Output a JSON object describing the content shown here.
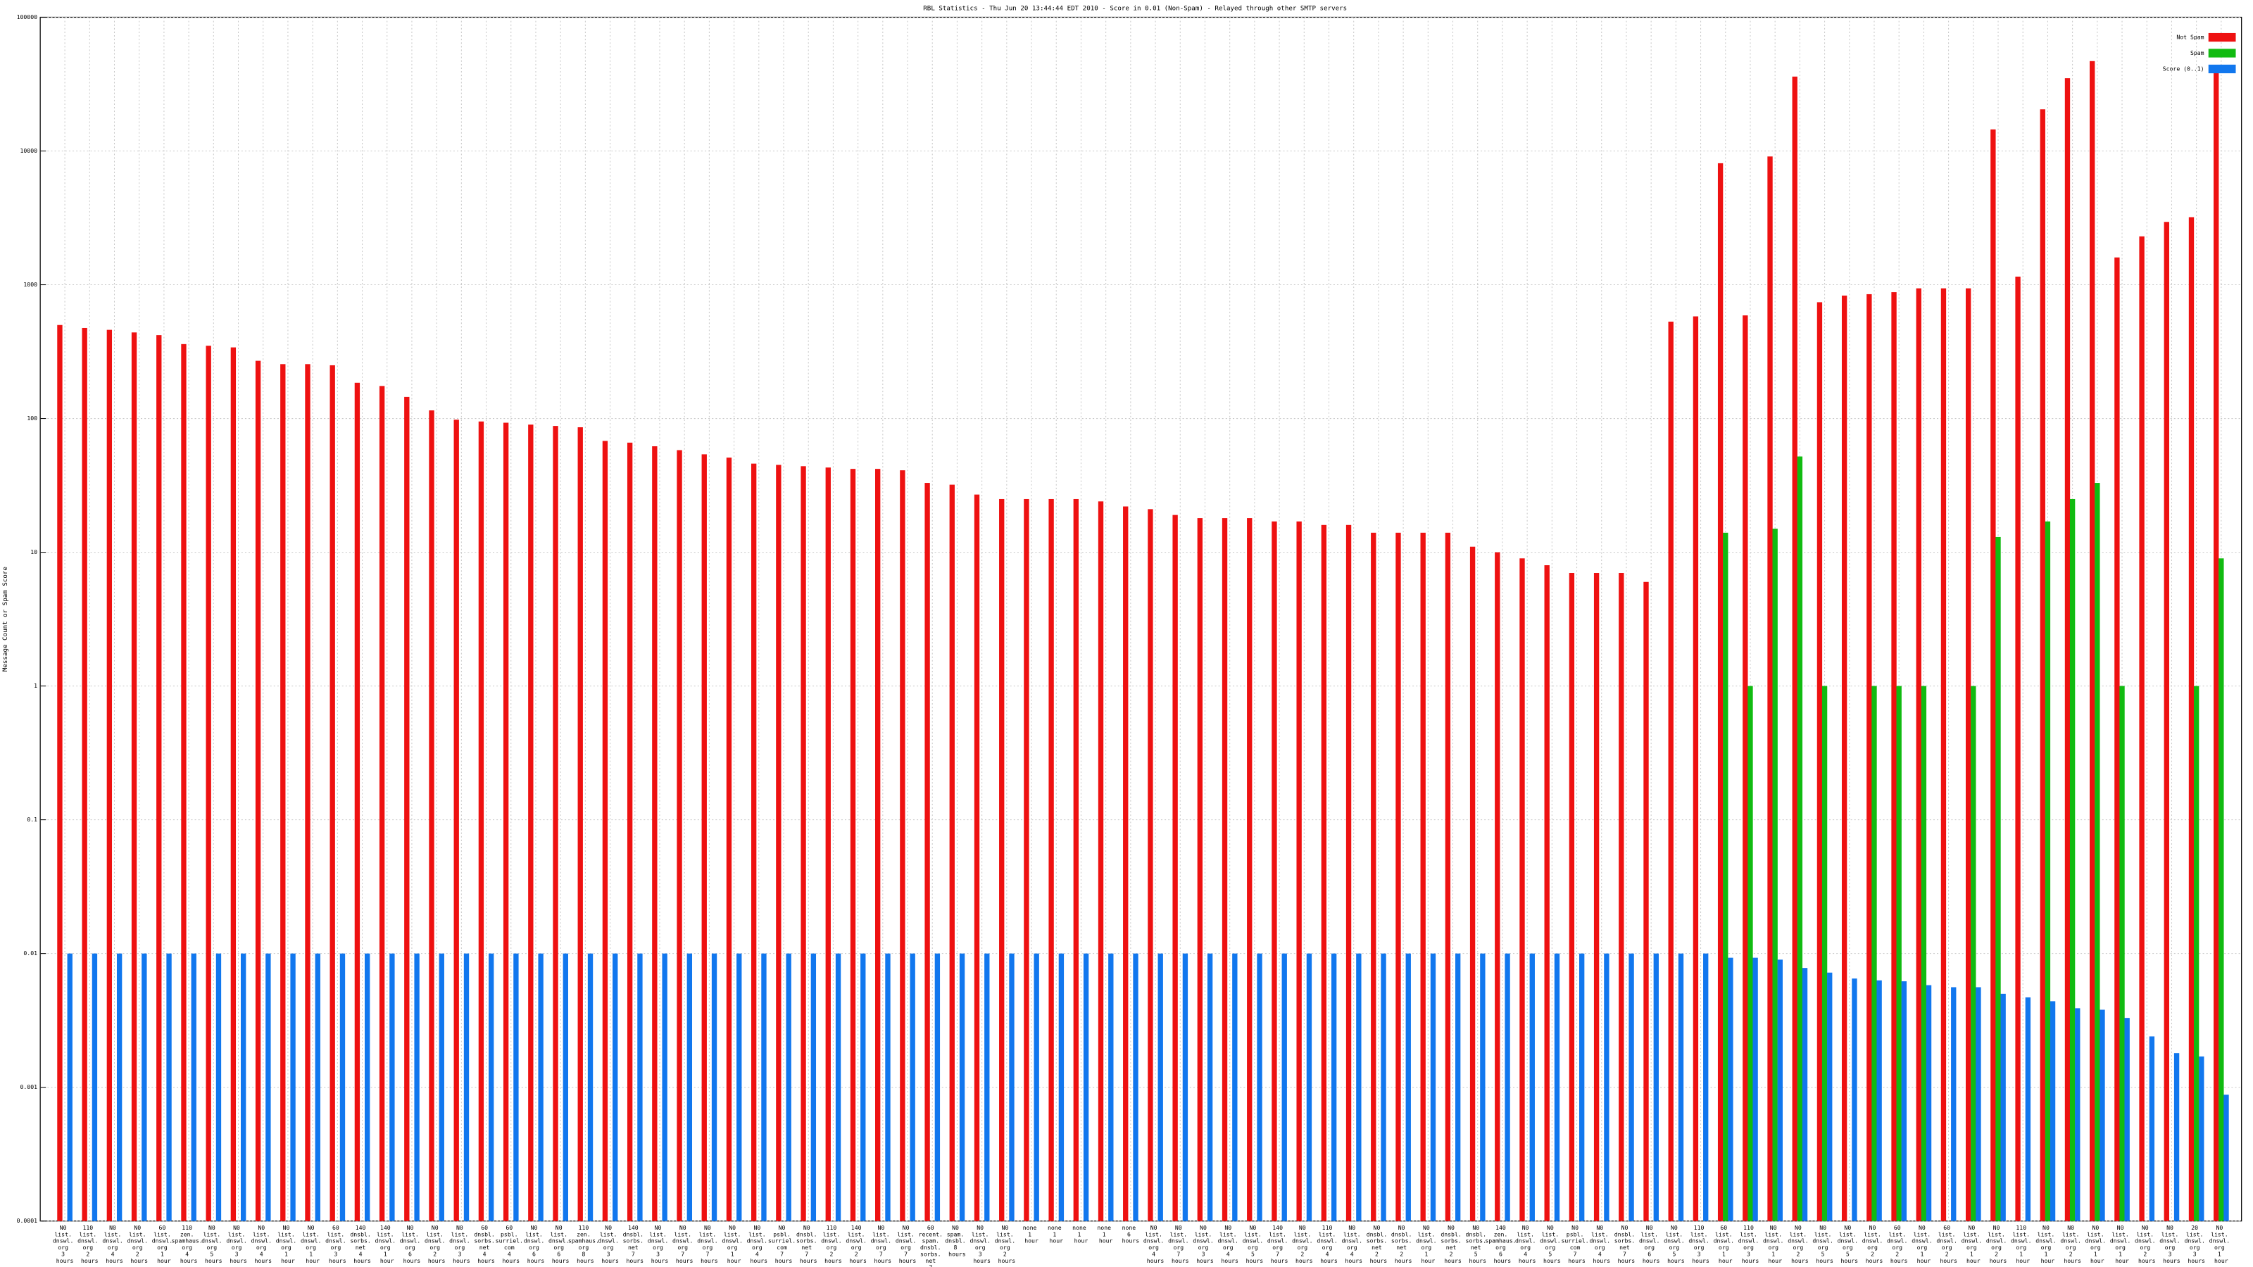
{
  "chart_data": {
    "type": "bar",
    "title": "RBL Statistics - Thu Jun 20 13:44:44 EDT 2010 - Score in 0.01 (Non-Spam) - Relayed through other SMTP servers",
    "y_label": "Message Count or Spam Score",
    "log_scale": true,
    "grid": true,
    "legend": "top-right",
    "ylim": [
      0.0001,
      100000
    ],
    "yticks": [
      0.0001,
      0.001,
      0.01,
      0.1,
      1,
      10,
      100,
      1000,
      10000,
      100000
    ],
    "categories": [
      "N0 list. dnswl. org 3 hours",
      "110 list. dnswl. org 2 hours",
      "N0 list. dnswl. org 4 hours",
      "N0 list. dnswl. org 2 hours",
      "60 list. dnswl. org 1 hour",
      "110 zen. spamhaus. org 4 hours",
      "N0 list. dnswl. org 5 hours",
      "N0 list. dnswl. org 3 hours",
      "N0 list. dnswl. org 4 hours",
      "N0 list. dnswl. org 1 hour",
      "N0 list. dnswl. org 1 hour",
      "60 list. dnswl. org 3 hours",
      "140 dnsbl. sorbs. net 4 hours",
      "140 list. dnswl. org 1 hour",
      "N0 list. dnswl. org 6 hours",
      "N0 list. dnswl. org 2 hours",
      "N0 list. dnswl. org 3 hours",
      "60 dnsbl. sorbs. net 4 hours",
      "60 psbl. surriel. com 4 hours",
      "N0 list. dnswl. org 6 hours",
      "N0 list. dnswl. org 6 hours",
      "110 zen. spamhaus. org 8 hours",
      "N0 list. dnswl. org 3 hours",
      "140 dnsbl. sorbs. net 7 hours",
      "N0 list. dnswl. org 3 hours",
      "N0 list. dnswl. org 7 hours",
      "N0 list. dnswl. org 7 hours",
      "N0 list. dnswl. org 1 hour",
      "N0 list. dnswl. org 4 hours",
      "N0 psbl. surriel. com 7 hours",
      "N0 dnsbl. sorbs. net 7 hours",
      "110 list. dnswl. org 2 hours",
      "140 list. dnswl. org 2 hours",
      "N0 list. dnswl. org 7 hours",
      "N0 list. dnswl. org 7 hours",
      "60 recent. spam. dnsbl. sorbs. net 7 hours",
      "N0 spam. dnsbl. 8 hours",
      "N0 list. dnswl. org 3 hours",
      "N0 list. dnswl. org 2 hours",
      "none 1 hour",
      "none 1 hour",
      "none 1 hour",
      "none 1 hour",
      "none 6 hours",
      "N0 list. dnswl. org 4 hours",
      "N0 list. dnswl. org 7 hours",
      "N0 list. dnswl. org 3 hours",
      "N0 list. dnswl. org 4 hours",
      "N0 list. dnswl. org 5 hours",
      "140 list. dnswl. org 7 hours",
      "N0 list. dnswl. org 2 hours",
      "110 list. dnswl. org 4 hours",
      "N0 list. dnswl. org 4 hours",
      "N0 dnsbl. sorbs. net 2 hours",
      "N0 dnsbl. sorbs. net 2 hours",
      "N0 list. dnswl. org 1 hour",
      "N0 dnsbl. sorbs. net 2 hours",
      "N0 dnsbl. sorbs. net 5 hours",
      "140 zen. spamhaus. org 6 hours",
      "N0 list. dnswl. org 4 hours",
      "N0 list. dnswl. org 5 hours",
      "N0 psbl. surriel. com 7 hours",
      "N0 list. dnswl. org 4 hours",
      "N0 dnsbl. sorbs. net 7 hours",
      "N0 list. dnswl. org 6 hours",
      "N0 list. dnswl. org 5 hours",
      "110 list. dnswl. org 3 hours",
      "60 list. dnswl. org 1 hour",
      "110 list. dnswl. org 3 hours",
      "N0 list. dnswl. org 1 hour",
      "N0 list. dnswl. org 2 hours",
      "N0 list. dnswl. org 5 hours",
      "N0 list. dnswl. org 5 hours",
      "N0 list. dnswl. org 2 hours",
      "60 list. dnswl. org 2 hours",
      "N0 list. dnswl. org 1 hour",
      "60 list. dnswl. org 2 hours",
      "N0 list. dnswl. org 1 hour",
      "N0 list. dnswl. org 2 hours",
      "110 list. dnswl. org 1 hour",
      "N0 list. dnswl. org 1 hour",
      "N0 list. dnswl. org 2 hours",
      "N0 list. dnswl. org 1 hour",
      "N0 list. dnswl. org 1 hour",
      "N0 list. dnswl. org 2 hours",
      "N0 list. dnswl. org 3 hours",
      "20 list. dnswl. org 3 hours",
      "N0 list. dnswl. org 1 hour"
    ],
    "series": [
      {
        "name": "Not Spam",
        "color": "#ee1111",
        "values": [
          500,
          475,
          460,
          440,
          420,
          360,
          350,
          340,
          270,
          255,
          255,
          250,
          185,
          175,
          145,
          115,
          98,
          95,
          93,
          90,
          88,
          86,
          68,
          66,
          62,
          58,
          54,
          51,
          46,
          45,
          44,
          43,
          42,
          42,
          41,
          33,
          32,
          27,
          25,
          25,
          25,
          25,
          24,
          22,
          21,
          19,
          18,
          18,
          18,
          17,
          17,
          16,
          16,
          14,
          14,
          14,
          14,
          11,
          10,
          9,
          8,
          7,
          7,
          7,
          6,
          530,
          580,
          8100,
          590,
          9100,
          36000,
          740,
          830,
          850,
          880,
          940,
          940,
          940,
          14500,
          1150,
          20500,
          35000,
          47000,
          1600,
          2300,
          2950,
          3200,
          44000
        ]
      },
      {
        "name": "Spam",
        "color": "#11bb11",
        "values": [
          null,
          null,
          null,
          null,
          null,
          null,
          null,
          null,
          null,
          null,
          null,
          null,
          null,
          null,
          null,
          null,
          null,
          null,
          null,
          null,
          null,
          null,
          null,
          null,
          null,
          null,
          null,
          null,
          null,
          null,
          null,
          null,
          null,
          null,
          null,
          null,
          null,
          null,
          null,
          null,
          null,
          null,
          null,
          null,
          null,
          null,
          null,
          null,
          null,
          null,
          null,
          null,
          null,
          null,
          null,
          null,
          null,
          null,
          null,
          null,
          null,
          null,
          null,
          null,
          null,
          null,
          null,
          14,
          1,
          15,
          52,
          1,
          null,
          1,
          1,
          1,
          null,
          1,
          13,
          null,
          17,
          25,
          33,
          1,
          null,
          null,
          1,
          9
        ]
      },
      {
        "name": "Score (0..1)",
        "color": "#1177ee",
        "values": [
          0.01,
          0.01,
          0.01,
          0.01,
          0.01,
          0.01,
          0.01,
          0.01,
          0.01,
          0.01,
          0.01,
          0.01,
          0.01,
          0.01,
          0.01,
          0.01,
          0.01,
          0.01,
          0.01,
          0.01,
          0.01,
          0.01,
          0.01,
          0.01,
          0.01,
          0.01,
          0.01,
          0.01,
          0.01,
          0.01,
          0.01,
          0.01,
          0.01,
          0.01,
          0.01,
          0.01,
          0.01,
          0.01,
          0.01,
          0.01,
          0.01,
          0.01,
          0.01,
          0.01,
          0.01,
          0.01,
          0.01,
          0.01,
          0.01,
          0.01,
          0.01,
          0.01,
          0.01,
          0.01,
          0.01,
          0.01,
          0.01,
          0.01,
          0.01,
          0.01,
          0.01,
          0.01,
          0.01,
          0.01,
          0.01,
          0.01,
          0.01,
          0.0093,
          0.0093,
          0.009,
          0.0078,
          0.0072,
          0.0065,
          0.0063,
          0.0062,
          0.0058,
          0.0056,
          0.0056,
          0.005,
          0.0047,
          0.0044,
          0.0039,
          0.0038,
          0.0033,
          0.0024,
          0.0018,
          0.0017,
          0.00088
        ]
      }
    ]
  }
}
